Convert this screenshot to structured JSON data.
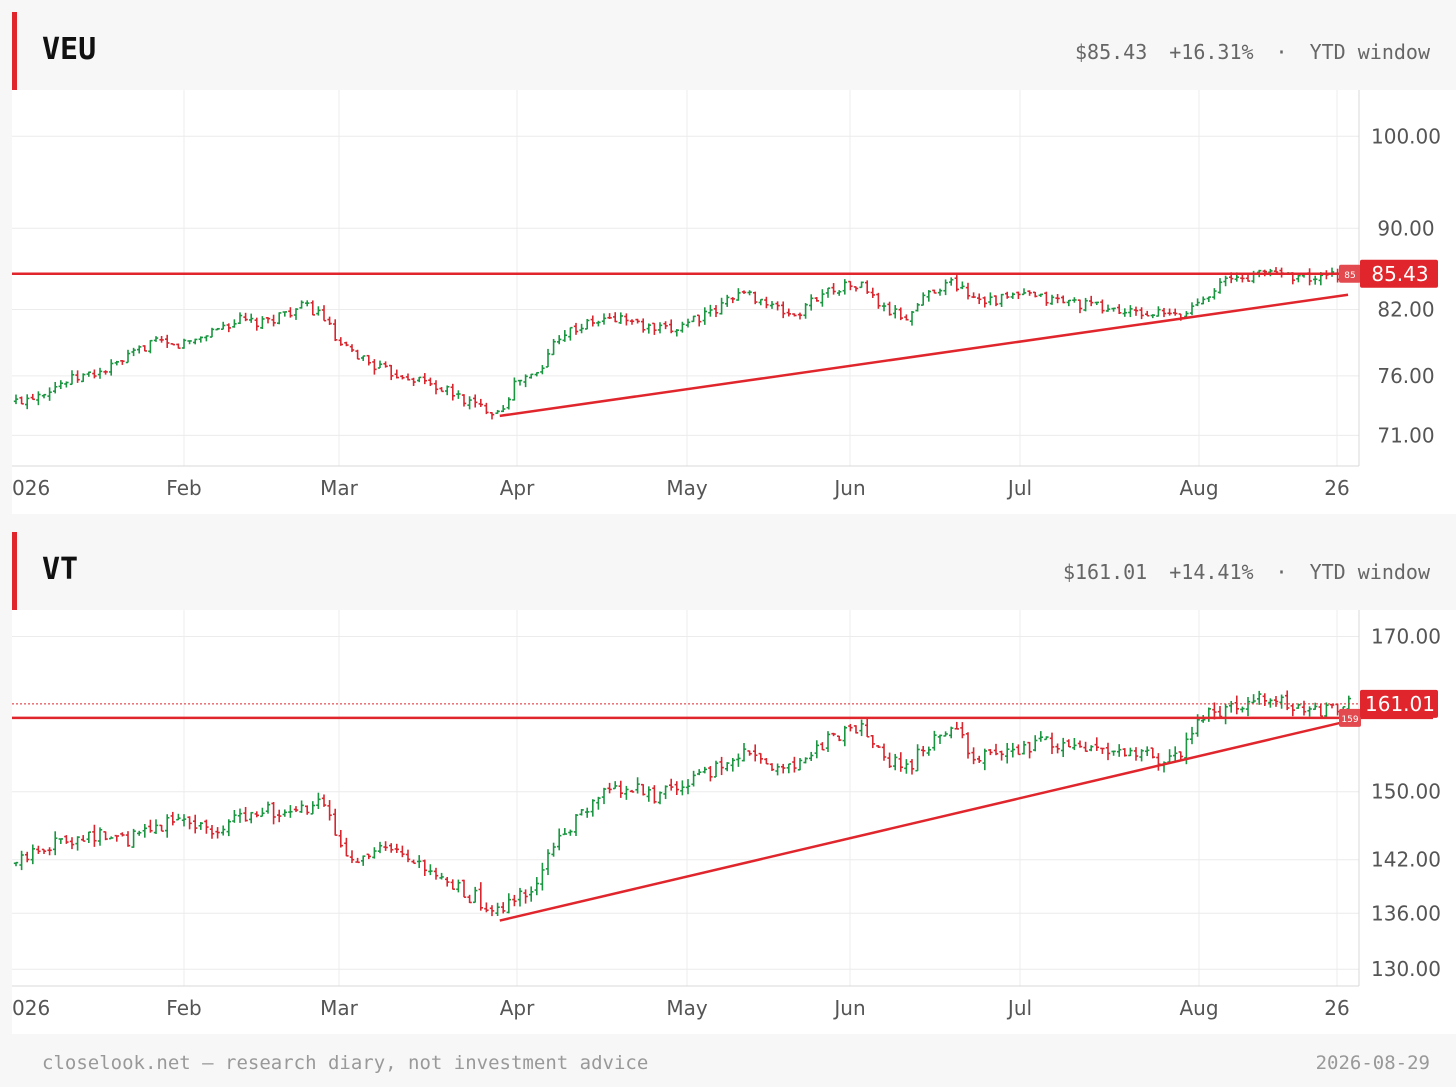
{
  "colors": {
    "up": "#1a9641",
    "down": "#d7262e",
    "accent": "#e0262c",
    "grid": "#eeeeee"
  },
  "panels": [
    {
      "ticker": "VEU",
      "price": "$85.43",
      "change": "+16.31%",
      "separator": "·",
      "window": "YTD window",
      "tag": "85.43",
      "small_tag": "85",
      "chart_data": {
        "type": "ohlc",
        "y_ticks": [
          "100.00",
          "90.00",
          "82.00",
          "76.00",
          "71.00"
        ],
        "x_ticks": [
          "026",
          "Feb",
          "Mar",
          "Apr",
          "May",
          "Jun",
          "Jul",
          "Aug",
          "26"
        ],
        "ylim_log": [
          69.5,
          104
        ],
        "last_close": 85.43,
        "horizontal_line": 85.43,
        "trendline": [
          [
            "2026-03-29",
            72.6
          ],
          [
            "2026-08-28",
            83.4
          ]
        ],
        "closes": [
          [
            "2026-01-02",
            73.8
          ],
          [
            "2026-01-06",
            74.6
          ],
          [
            "2026-01-10",
            75.4
          ],
          [
            "2026-01-14",
            76.0
          ],
          [
            "2026-01-18",
            76.5
          ],
          [
            "2026-01-22",
            77.6
          ],
          [
            "2026-01-26",
            79.0
          ],
          [
            "2026-01-30",
            78.6
          ],
          [
            "2026-02-03",
            79.2
          ],
          [
            "2026-02-07",
            80.3
          ],
          [
            "2026-02-11",
            81.0
          ],
          [
            "2026-02-15",
            80.6
          ],
          [
            "2026-02-19",
            81.7
          ],
          [
            "2026-02-23",
            82.3
          ],
          [
            "2026-02-26",
            81.5
          ],
          [
            "2026-03-01",
            78.6
          ],
          [
            "2026-03-05",
            77.6
          ],
          [
            "2026-03-09",
            76.4
          ],
          [
            "2026-03-13",
            76.0
          ],
          [
            "2026-03-17",
            75.3
          ],
          [
            "2026-03-21",
            74.4
          ],
          [
            "2026-03-25",
            73.4
          ],
          [
            "2026-03-29",
            73.0
          ],
          [
            "2026-04-01",
            75.6
          ],
          [
            "2026-04-05",
            76.2
          ],
          [
            "2026-04-08",
            79.6
          ],
          [
            "2026-04-12",
            80.4
          ],
          [
            "2026-04-16",
            81.0
          ],
          [
            "2026-04-20",
            81.2
          ],
          [
            "2026-04-24",
            80.2
          ],
          [
            "2026-04-28",
            80.0
          ],
          [
            "2026-05-02",
            81.2
          ],
          [
            "2026-05-06",
            81.6
          ],
          [
            "2026-05-10",
            83.6
          ],
          [
            "2026-05-14",
            83.2
          ],
          [
            "2026-05-18",
            82.0
          ],
          [
            "2026-05-22",
            81.4
          ],
          [
            "2026-05-26",
            83.4
          ],
          [
            "2026-05-30",
            84.2
          ],
          [
            "2026-06-03",
            84.3
          ],
          [
            "2026-06-07",
            82.0
          ],
          [
            "2026-06-11",
            81.2
          ],
          [
            "2026-06-15",
            83.8
          ],
          [
            "2026-06-19",
            84.6
          ],
          [
            "2026-06-23",
            83.2
          ],
          [
            "2026-06-27",
            82.9
          ],
          [
            "2026-07-01",
            83.4
          ],
          [
            "2026-07-05",
            83.0
          ],
          [
            "2026-07-09",
            82.8
          ],
          [
            "2026-07-13",
            82.4
          ],
          [
            "2026-07-17",
            82.0
          ],
          [
            "2026-07-21",
            81.6
          ],
          [
            "2026-07-25",
            81.6
          ],
          [
            "2026-07-29",
            81.3
          ],
          [
            "2026-08-02",
            83.4
          ],
          [
            "2026-08-06",
            84.8
          ],
          [
            "2026-08-10",
            85.1
          ],
          [
            "2026-08-14",
            85.8
          ],
          [
            "2026-08-18",
            85.3
          ],
          [
            "2026-08-22",
            84.9
          ],
          [
            "2026-08-26",
            85.2
          ],
          [
            "2026-08-29",
            85.43
          ]
        ]
      }
    },
    {
      "ticker": "VT",
      "price": "$161.01",
      "change": "+14.41%",
      "separator": "·",
      "window": "YTD window",
      "tag": "161.01",
      "small_tag": "159",
      "chart_data": {
        "type": "ohlc",
        "y_ticks": [
          "170.00",
          "150.00",
          "142.00",
          "136.00",
          "130.00"
        ],
        "x_ticks": [
          "026",
          "Feb",
          "Mar",
          "Apr",
          "May",
          "Jun",
          "Jul",
          "Aug",
          "26"
        ],
        "ylim_log": [
          129.5,
          172
        ],
        "last_close": 161.01,
        "horizontal_line": 159.2,
        "trendline": [
          [
            "2026-03-29",
            135.2
          ],
          [
            "2026-08-28",
            158.8
          ]
        ],
        "closes": [
          [
            "2026-01-02",
            141.5
          ],
          [
            "2026-01-06",
            143.4
          ],
          [
            "2026-01-10",
            144.2
          ],
          [
            "2026-01-14",
            145.0
          ],
          [
            "2026-01-18",
            144.6
          ],
          [
            "2026-01-22",
            144.2
          ],
          [
            "2026-01-26",
            145.5
          ],
          [
            "2026-01-30",
            146.8
          ],
          [
            "2026-02-03",
            146.4
          ],
          [
            "2026-02-07",
            145.2
          ],
          [
            "2026-02-11",
            147.0
          ],
          [
            "2026-02-15",
            148.2
          ],
          [
            "2026-02-19",
            147.0
          ],
          [
            "2026-02-23",
            147.8
          ],
          [
            "2026-02-26",
            148.6
          ],
          [
            "2026-03-01",
            144.0
          ],
          [
            "2026-03-05",
            141.8
          ],
          [
            "2026-03-09",
            143.2
          ],
          [
            "2026-03-13",
            141.6
          ],
          [
            "2026-03-17",
            140.4
          ],
          [
            "2026-03-21",
            138.8
          ],
          [
            "2026-03-25",
            137.6
          ],
          [
            "2026-03-29",
            135.8
          ],
          [
            "2026-04-01",
            137.8
          ],
          [
            "2026-04-05",
            139.6
          ],
          [
            "2026-04-08",
            144.6
          ],
          [
            "2026-04-12",
            146.8
          ],
          [
            "2026-04-16",
            149.6
          ],
          [
            "2026-04-20",
            150.6
          ],
          [
            "2026-04-24",
            149.6
          ],
          [
            "2026-04-28",
            149.8
          ],
          [
            "2026-05-02",
            151.4
          ],
          [
            "2026-05-06",
            152.6
          ],
          [
            "2026-05-10",
            154.6
          ],
          [
            "2026-05-14",
            154.8
          ],
          [
            "2026-05-18",
            152.6
          ],
          [
            "2026-05-22",
            153.0
          ],
          [
            "2026-05-26",
            155.8
          ],
          [
            "2026-05-30",
            157.2
          ],
          [
            "2026-06-03",
            157.8
          ],
          [
            "2026-06-07",
            154.4
          ],
          [
            "2026-06-11",
            152.8
          ],
          [
            "2026-06-15",
            156.0
          ],
          [
            "2026-06-19",
            157.6
          ],
          [
            "2026-06-23",
            154.4
          ],
          [
            "2026-06-27",
            154.0
          ],
          [
            "2026-07-01",
            155.6
          ],
          [
            "2026-07-05",
            156.2
          ],
          [
            "2026-07-09",
            155.4
          ],
          [
            "2026-07-13",
            155.8
          ],
          [
            "2026-07-17",
            154.6
          ],
          [
            "2026-07-21",
            155.0
          ],
          [
            "2026-07-25",
            153.8
          ],
          [
            "2026-07-29",
            154.6
          ],
          [
            "2026-08-02",
            159.8
          ],
          [
            "2026-08-06",
            160.2
          ],
          [
            "2026-08-10",
            161.2
          ],
          [
            "2026-08-14",
            161.8
          ],
          [
            "2026-08-18",
            160.2
          ],
          [
            "2026-08-22",
            159.8
          ],
          [
            "2026-08-26",
            160.6
          ],
          [
            "2026-08-29",
            161.01
          ]
        ]
      }
    }
  ],
  "footer": {
    "left": "closelook.net — research diary, not investment advice",
    "right": "2026-08-29"
  }
}
